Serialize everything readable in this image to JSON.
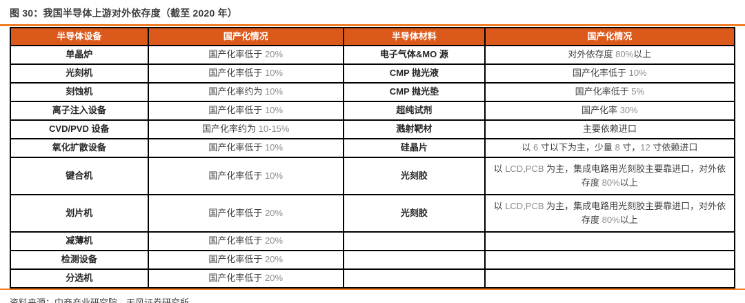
{
  "title": "图 30：我国半导体上游对外依存度（截至 2020 年）",
  "source": "资料来源：中商产业研究院，天风证券研究所",
  "colors": {
    "header_orange": "#dc591c",
    "rule_orange": "#ef7e29",
    "border_black": "#000000",
    "title_gray": "#3b3b3b",
    "value_gray": "#3f3f3f",
    "number_gray": "#8c8c8c"
  },
  "table": {
    "headers": [
      "半导体设备",
      "国产化情况",
      "半导体材料",
      "国产化情况"
    ],
    "rows": [
      {
        "equipment": "单晶炉",
        "equipment_status": "国产化率低于 20%",
        "material": "电子气体&MO 源",
        "material_status": "对外依存度 80%以上",
        "tall": false
      },
      {
        "equipment": "光刻机",
        "equipment_status": "国产化率低于 10%",
        "material": "CMP 抛光液",
        "material_status": "国产化率低于 10%",
        "tall": false
      },
      {
        "equipment": "刻蚀机",
        "equipment_status": "国产化率约为 10%",
        "material": "CMP 抛光垫",
        "material_status": "国产化率低于 5%",
        "tall": false
      },
      {
        "equipment": "离子注入设备",
        "equipment_status": "国产化率低于 10%",
        "material": "超纯试剂",
        "material_status": "国产化率 30%",
        "tall": false
      },
      {
        "equipment": "CVD/PVD 设备",
        "equipment_status": "国产化率约为 10-15%",
        "material": "溅射靶材",
        "material_status": "主要依赖进口",
        "tall": false
      },
      {
        "equipment": "氧化扩散设备",
        "equipment_status": "国产化率低于 10%",
        "material": "硅晶片",
        "material_status": "以 6 寸以下为主，少量 8 寸，12 寸依赖进口",
        "tall": false
      },
      {
        "equipment": "键合机",
        "equipment_status": "国产化率低于 10%",
        "material": "光刻胶",
        "material_status": "以 LCD,PCB 为主，集成电路用光刻胶主要靠进口，对外依存度 80%以上",
        "tall": true
      },
      {
        "equipment": "划片机",
        "equipment_status": "国产化率低于 20%",
        "material": "光刻胶",
        "material_status": "以 LCD,PCB 为主，集成电路用光刻胶主要靠进口，对外依存度 80%以上",
        "tall": true
      },
      {
        "equipment": "减薄机",
        "equipment_status": "国产化率低于 20%",
        "material": "",
        "material_status": "",
        "tall": false
      },
      {
        "equipment": "检测设备",
        "equipment_status": "国产化率低于 20%",
        "material": "",
        "material_status": "",
        "tall": false
      },
      {
        "equipment": "分选机",
        "equipment_status": "国产化率低于 20%",
        "material": "",
        "material_status": "",
        "tall": false
      }
    ]
  }
}
